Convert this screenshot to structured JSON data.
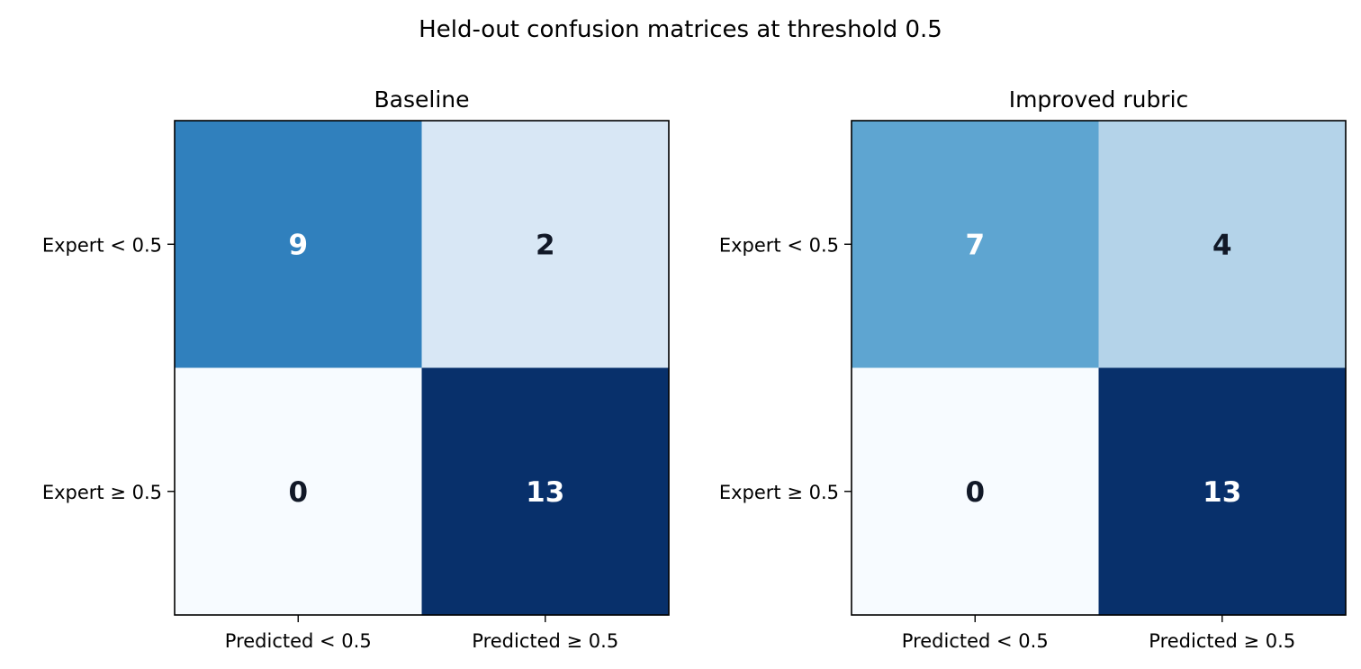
{
  "chart_data": {
    "type": "heatmap",
    "title": "Held-out confusion matrices at threshold 0.5",
    "color_scale": {
      "name": "Blues",
      "low": "#f7fbff",
      "high": "#08306b",
      "text_dark": "#111827",
      "text_light": "#ffffff"
    },
    "row_labels": [
      "Expert < 0.5",
      "Expert ≥ 0.5"
    ],
    "col_labels": [
      "Predicted < 0.5",
      "Predicted ≥ 0.5"
    ],
    "panels": [
      {
        "title": "Baseline",
        "matrix": [
          [
            9,
            2
          ],
          [
            0,
            13
          ]
        ]
      },
      {
        "title": "Improved rubric",
        "matrix": [
          [
            7,
            4
          ],
          [
            0,
            13
          ]
        ]
      }
    ]
  }
}
